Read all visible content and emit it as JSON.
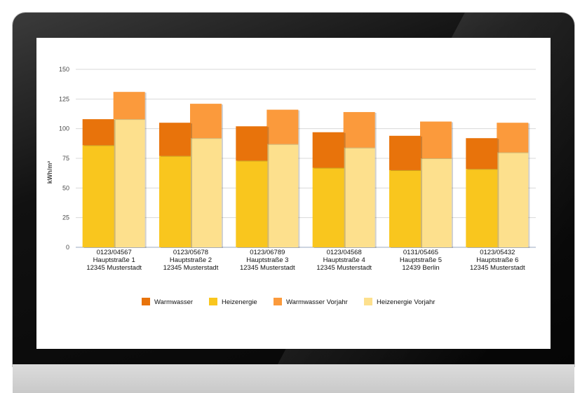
{
  "chart_data": {
    "type": "bar",
    "stacked": true,
    "grouped": true,
    "ylabel": "kWh/m²",
    "ylim": [
      0,
      150
    ],
    "yticks": [
      0,
      25,
      50,
      75,
      100,
      125,
      150
    ],
    "grid": true,
    "legend_position": "bottom",
    "categories": [
      [
        "0123/04567",
        "Hauptstraße 1",
        "12345 Musterstadt"
      ],
      [
        "0123/05678",
        "Hauptstraße 2",
        "12345 Musterstadt"
      ],
      [
        "0123/06789",
        "Hauptstraße 3",
        "12345 Musterstadt"
      ],
      [
        "0123/04568",
        "Hauptstraße 4",
        "12345 Musterstadt"
      ],
      [
        "0131/05465",
        "Hauptstraße 5",
        "12439 Berlin"
      ],
      [
        "0123/05432",
        "Hauptstraße 6",
        "12345 Musterstadt"
      ]
    ],
    "series": [
      {
        "name": "Warmwasser",
        "stack": "current",
        "color": "#e8730b",
        "values": [
          22,
          28,
          29,
          30,
          29,
          26
        ]
      },
      {
        "name": "Heizenergie",
        "stack": "current",
        "color": "#f9c61e",
        "values": [
          86,
          77,
          73,
          67,
          65,
          66
        ]
      },
      {
        "name": "Warmwasser Vorjahr",
        "stack": "previous",
        "color": "#fb9a3c",
        "values": [
          23,
          29,
          29,
          30,
          31,
          25
        ]
      },
      {
        "name": "Heizenergie Vorjahr",
        "stack": "previous",
        "color": "#fde08d",
        "values": [
          108,
          92,
          87,
          84,
          75,
          80
        ]
      }
    ]
  }
}
